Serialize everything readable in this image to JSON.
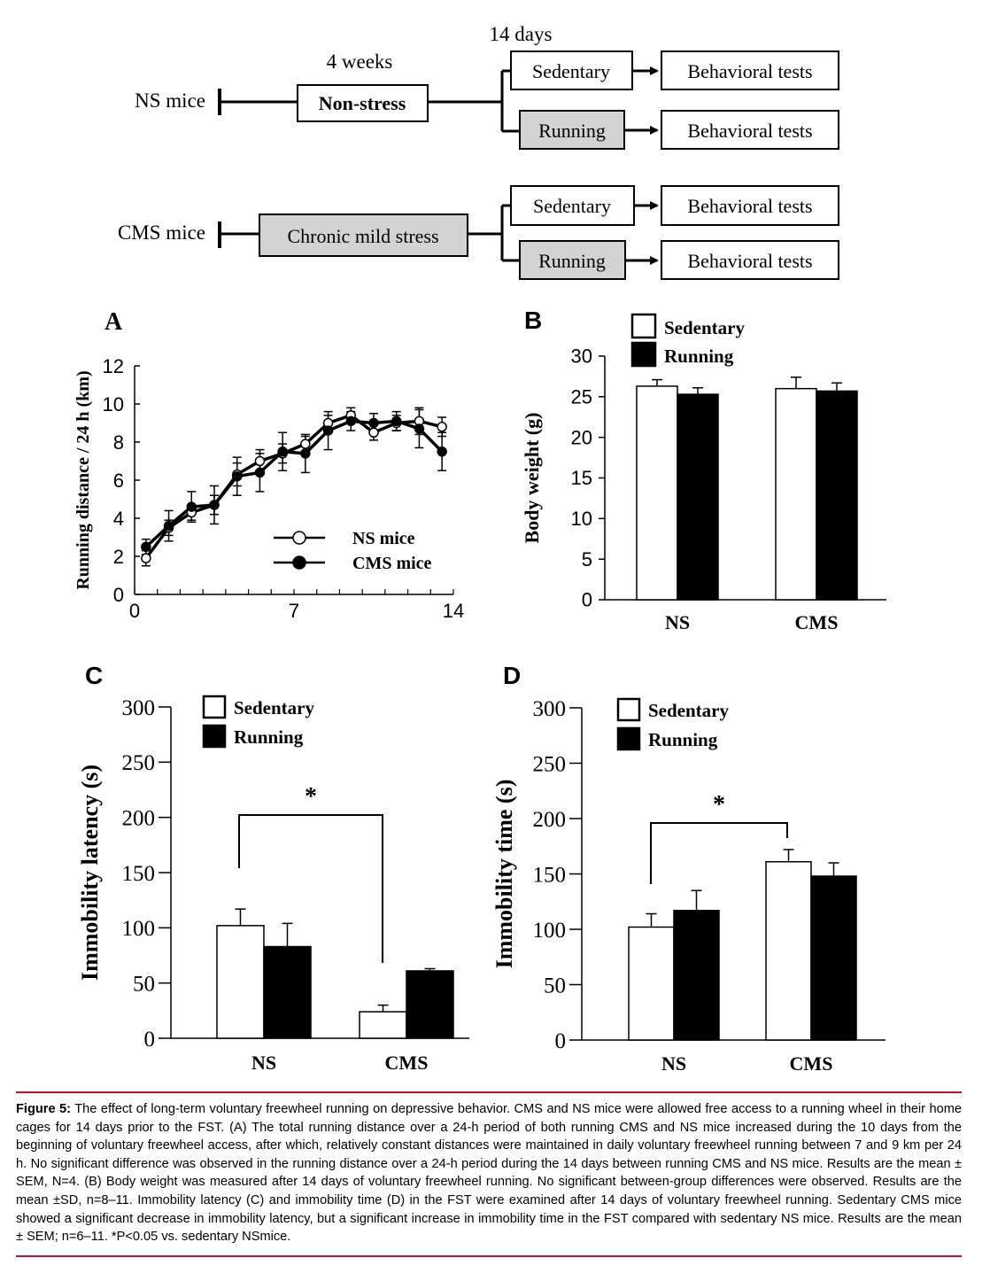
{
  "schematic": {
    "weeks_label": "4 weeks",
    "days_label": "14 days",
    "ns_label": "NS mice",
    "ns_box": "Non-stress",
    "cms_label": "CMS mice",
    "cms_box": "Chronic mild stress",
    "sedentary": "Sedentary",
    "running": "Running",
    "tests": "Behavioral tests"
  },
  "colors": {
    "white_bar": "#ffffff",
    "black_bar": "#000000",
    "gray_box": "#d3d3d3",
    "caption_rule": "#c8102e"
  },
  "chart_data": [
    {
      "panel": "A",
      "type": "line",
      "xlabel": "",
      "ylabel": "Running distance / 24 h (km)",
      "xlim": [
        0,
        14
      ],
      "ylim": [
        0,
        12
      ],
      "xticks": [
        "0",
        "7",
        "14"
      ],
      "yticks": [
        "0",
        "2",
        "4",
        "6",
        "8",
        "10",
        "12"
      ],
      "x": [
        0.5,
        1.5,
        2.5,
        3.5,
        4.5,
        5.5,
        6.5,
        7.5,
        8.5,
        9.5,
        10.5,
        11.5,
        12.5,
        13.5
      ],
      "series": [
        {
          "name": "NS mice",
          "marker": "open-circle",
          "values": [
            1.9,
            3.5,
            4.3,
            4.7,
            6.3,
            7.0,
            7.4,
            7.9,
            9.0,
            9.4,
            8.5,
            9.0,
            9.1,
            8.8
          ],
          "errors": [
            0.4,
            0.4,
            0.4,
            0.5,
            0.6,
            0.6,
            0.5,
            0.4,
            0.4,
            0.4,
            0.4,
            0.4,
            0.7,
            0.5
          ]
        },
        {
          "name": "CMS mice",
          "marker": "filled-circle",
          "values": [
            2.5,
            3.6,
            4.6,
            4.7,
            6.2,
            6.4,
            7.5,
            7.4,
            8.6,
            9.1,
            9.0,
            9.1,
            8.7,
            7.5
          ],
          "errors": [
            0.4,
            0.8,
            0.8,
            1.0,
            1.0,
            1.0,
            1.0,
            1.0,
            1.0,
            0.5,
            0.5,
            0.5,
            1.0,
            1.0
          ]
        }
      ]
    },
    {
      "panel": "B",
      "type": "bar",
      "categories": [
        "NS",
        "CMS"
      ],
      "ylabel": "Body weight (g)",
      "ylim": [
        0,
        30
      ],
      "yticks": [
        "0",
        "5",
        "10",
        "15",
        "20",
        "25",
        "30"
      ],
      "legend_position": "top-left",
      "series": [
        {
          "name": "Sedentary",
          "values": [
            26.3,
            26.0
          ],
          "errors": [
            0.8,
            1.4
          ]
        },
        {
          "name": "Running",
          "values": [
            25.3,
            25.7
          ],
          "errors": [
            0.8,
            1.0
          ]
        }
      ]
    },
    {
      "panel": "C",
      "type": "bar",
      "categories": [
        "NS",
        "CMS"
      ],
      "ylabel": "Immobility latency (s)",
      "ylim": [
        0,
        300
      ],
      "yticks": [
        "0",
        "50",
        "100",
        "150",
        "200",
        "250",
        "300"
      ],
      "legend_position": "top-left",
      "series": [
        {
          "name": "Sedentary",
          "values": [
            102,
            24
          ],
          "errors": [
            15,
            6
          ]
        },
        {
          "name": "Running",
          "values": [
            83,
            61
          ],
          "errors": [
            21,
            2
          ]
        }
      ],
      "significance": {
        "between": [
          "NS Sedentary",
          "CMS Sedentary"
        ],
        "label": "*"
      }
    },
    {
      "panel": "D",
      "type": "bar",
      "categories": [
        "NS",
        "CMS"
      ],
      "ylabel": "Immobility time (s)",
      "ylim": [
        0,
        300
      ],
      "yticks": [
        "0",
        "50",
        "100",
        "150",
        "200",
        "250",
        "300"
      ],
      "legend_position": "top-left",
      "series": [
        {
          "name": "Sedentary",
          "values": [
            102,
            161
          ],
          "errors": [
            12,
            11
          ]
        },
        {
          "name": "Running",
          "values": [
            117,
            148
          ],
          "errors": [
            18,
            12
          ]
        }
      ],
      "significance": {
        "between": [
          "NS Sedentary",
          "CMS Sedentary"
        ],
        "label": "*"
      }
    }
  ],
  "caption": {
    "label": "Figure 5:",
    "text": "The effect of long-term voluntary freewheel running on depressive behavior. CMS and NS mice were allowed free access to a running wheel in their home cages for 14 days prior to the FST. (A) The total running distance over a 24-h period of both running CMS and NS mice increased during the 10 days from the beginning of voluntary freewheel access, after which, relatively constant distances were maintained in daily voluntary freewheel running between 7 and 9 km per 24 h. No significant difference was observed in the running distance over a 24-h period during the 14 days between running CMS and NS mice. Results are the mean ± SEM, N=4. (B) Body weight was measured after 14 days of voluntary freewheel running. No significant between-group differences were observed. Results are the mean ±SD, n=8–11. Immobility latency (C) and immobility time (D) in the FST were examined after 14 days of voluntary freewheel running. Sedentary CMS mice showed a significant decrease in immobility latency, but a significant increase in immobility time in the FST compared with sedentary NS mice. Results are the mean ± SEM; n=6–11. *P<0.05 vs. sedentary NSmice."
  }
}
